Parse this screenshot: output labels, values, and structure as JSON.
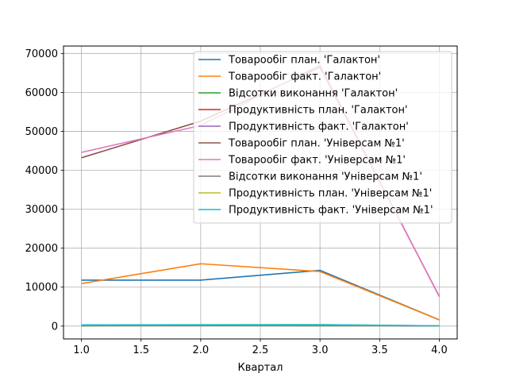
{
  "chart_data": {
    "type": "line",
    "title": "",
    "xlabel": "Квартал",
    "ylabel": "",
    "xlim": [
      0.85,
      4.15
    ],
    "ylim": [
      -3300,
      71900
    ],
    "xticks": [
      1.0,
      1.5,
      2.0,
      2.5,
      3.0,
      3.5,
      4.0
    ],
    "xtick_labels": [
      "1.0",
      "1.5",
      "2.0",
      "2.5",
      "3.0",
      "3.5",
      "4.0"
    ],
    "yticks": [
      0,
      10000,
      20000,
      30000,
      40000,
      50000,
      60000,
      70000
    ],
    "ytick_labels": [
      "0",
      "10000",
      "20000",
      "30000",
      "40000",
      "50000",
      "60000",
      "70000"
    ],
    "grid": true,
    "legend_position": "upper-right",
    "x": [
      1,
      2,
      3,
      4
    ],
    "series": [
      {
        "name": "Товарообіг план. 'Галактон'",
        "color": "#1f77b4",
        "values": [
          11800,
          11800,
          14300,
          1600
        ]
      },
      {
        "name": "Товарообіг факт. 'Галактон'",
        "color": "#ff7f0e",
        "values": [
          10900,
          16000,
          14000,
          1600
        ]
      },
      {
        "name": "Відсотки виконання 'Галактон'",
        "color": "#2ca02c",
        "values": [
          90,
          135,
          98,
          100
        ]
      },
      {
        "name": "Продуктивність план. 'Галактон'",
        "color": "#d62728",
        "values": [
          200,
          200,
          240,
          30
        ]
      },
      {
        "name": "Продуктивність факт. 'Галактон'",
        "color": "#9467bd",
        "values": [
          180,
          270,
          235,
          30
        ]
      },
      {
        "name": "Товарообіг план. 'Універсам №1'",
        "color": "#8c564b",
        "values": [
          43200,
          52600,
          66500,
          7600
        ]
      },
      {
        "name": "Товарообіг факт. 'Універсам №1'",
        "color": "#e377c2",
        "values": [
          44600,
          51500,
          67000,
          7500
        ]
      },
      {
        "name": "Відсотки виконання 'Універсам №1'",
        "color": "#7f7f7f",
        "values": [
          103,
          98,
          101,
          99
        ]
      },
      {
        "name": "Продуктивність план. 'Універсам №1'",
        "color": "#bcbd22",
        "values": [
          300,
          330,
          360,
          60
        ]
      },
      {
        "name": "Продуктивність факт. 'Універсам №1'",
        "color": "#17becf",
        "values": [
          310,
          320,
          365,
          60
        ]
      }
    ]
  }
}
